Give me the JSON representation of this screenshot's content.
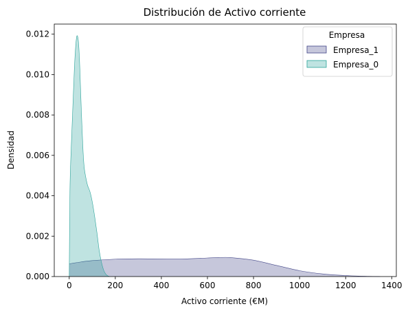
{
  "chart_data": {
    "type": "area",
    "title": "Distribución de Activo corriente",
    "xlabel": "Activo corriente (€M)",
    "ylabel": "Densidad",
    "xlim": [
      -65,
      1420
    ],
    "ylim": [
      0,
      0.0125
    ],
    "x_ticks": [
      {
        "value": 0,
        "label": "0"
      },
      {
        "value": 200,
        "label": "200"
      },
      {
        "value": 400,
        "label": "400"
      },
      {
        "value": 600,
        "label": "600"
      },
      {
        "value": 800,
        "label": "800"
      },
      {
        "value": 1000,
        "label": "1000"
      },
      {
        "value": 1200,
        "label": "1200"
      },
      {
        "value": 1400,
        "label": "1400"
      }
    ],
    "y_ticks": [
      {
        "value": 0,
        "label": "0.000"
      },
      {
        "value": 0.002,
        "label": "0.002"
      },
      {
        "value": 0.004,
        "label": "0.004"
      },
      {
        "value": 0.006,
        "label": "0.006"
      },
      {
        "value": 0.008,
        "label": "0.008"
      },
      {
        "value": 0.01,
        "label": "0.010"
      },
      {
        "value": 0.012,
        "label": "0.012"
      }
    ],
    "grid": false,
    "legend": {
      "title": "Empresa",
      "position": "top-right",
      "entries": [
        "Empresa_1",
        "Empresa_0"
      ]
    },
    "series": [
      {
        "name": "Empresa_1",
        "fill_color": "#414487",
        "fill_opacity": 0.3,
        "line_color": "#414487",
        "x": [
          0,
          50,
          100,
          200,
          300,
          400,
          500,
          600,
          650,
          700,
          800,
          900,
          1000,
          1100,
          1200,
          1300,
          1350
        ],
        "y": [
          0.00063,
          0.00072,
          0.00079,
          0.00086,
          0.00088,
          0.00087,
          0.00087,
          0.00092,
          0.00094,
          0.00094,
          0.00081,
          0.00055,
          0.00029,
          0.00013,
          5e-05,
          1e-05,
          0.0
        ]
      },
      {
        "name": "Empresa_0",
        "fill_color": "#2aa39a",
        "fill_opacity": 0.3,
        "line_color": "#2aa39a",
        "x": [
          0,
          3,
          8,
          15,
          22,
          28,
          33,
          38,
          42,
          46,
          50,
          55,
          60,
          65,
          72,
          80,
          90,
          100,
          110,
          120,
          130,
          140,
          150,
          160,
          170,
          175
        ],
        "y": [
          0.0,
          0.0042,
          0.0062,
          0.0082,
          0.0102,
          0.0114,
          0.0119,
          0.0118,
          0.0113,
          0.0103,
          0.009,
          0.0075,
          0.0062,
          0.0054,
          0.0049,
          0.0045,
          0.0042,
          0.0037,
          0.003,
          0.0022,
          0.0013,
          0.0007,
          0.0003,
          0.0001,
          2e-05,
          0.0
        ]
      }
    ]
  }
}
